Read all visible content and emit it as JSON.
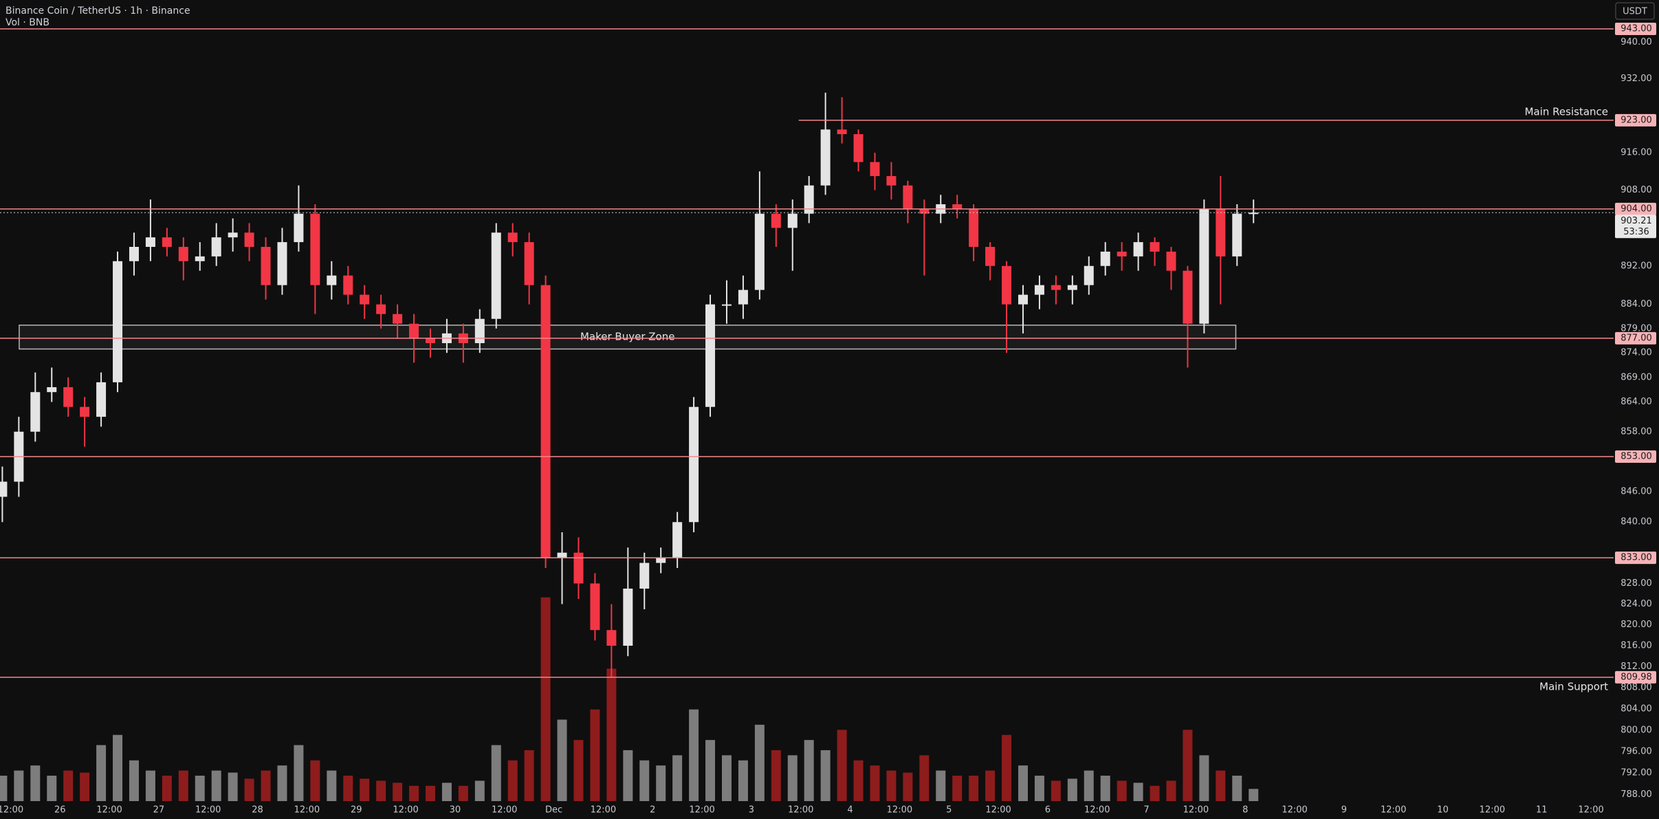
{
  "chart_data": {
    "type": "candlestick",
    "title": "Binance Coin / TetherUS · 1h · Binance",
    "subtitle": "Vol · BNB",
    "currency": "USDT",
    "log_scale": true,
    "up_color": "#e4e4e4",
    "down_color": "#f23645",
    "x": [
      -2,
      2,
      6,
      10,
      14,
      18,
      22,
      26,
      30,
      34,
      38,
      42,
      46,
      50,
      54,
      58,
      62,
      66,
      70,
      74,
      78,
      82,
      86,
      90,
      94,
      98,
      102,
      106,
      110,
      114,
      118,
      122,
      126,
      130,
      134,
      138,
      142,
      146,
      150,
      154,
      158,
      162,
      166,
      170,
      174,
      178,
      182,
      186,
      190,
      194,
      198,
      202,
      206,
      210,
      214,
      218,
      222,
      226,
      230,
      234,
      238,
      242,
      246,
      250,
      254,
      258,
      262,
      266,
      270,
      274,
      278,
      282,
      286,
      290,
      294,
      298,
      302
    ],
    "open": [
      845,
      848,
      858,
      866,
      867,
      863,
      861,
      868,
      893,
      896,
      898,
      896,
      893,
      894,
      898,
      899,
      896,
      888,
      897,
      903,
      888,
      890,
      886,
      884,
      882,
      880,
      877,
      876,
      878,
      876,
      881,
      899,
      897,
      888,
      833,
      834,
      828,
      819,
      816,
      827,
      832,
      833,
      840,
      863,
      884,
      884,
      887,
      903,
      900,
      903,
      909,
      921,
      920,
      914,
      911,
      909,
      904,
      903,
      905,
      904,
      896,
      892,
      884,
      886,
      888,
      887,
      888,
      892,
      895,
      894,
      897,
      895,
      891,
      880,
      904,
      894,
      903
    ],
    "high": [
      851,
      861,
      870,
      871,
      869,
      865,
      870,
      895,
      899,
      906,
      900,
      898,
      897,
      901,
      902,
      901,
      898,
      900,
      909,
      905,
      893,
      892,
      888,
      886,
      884,
      882,
      879,
      881,
      880,
      883,
      901,
      901,
      899,
      890,
      838,
      837,
      830,
      824,
      835,
      834,
      835,
      842,
      865,
      886,
      889,
      890,
      912,
      905,
      906,
      911,
      929,
      928,
      921,
      916,
      914,
      910,
      906,
      907,
      907,
      905,
      897,
      893,
      888,
      890,
      890,
      890,
      894,
      897,
      897,
      899,
      898,
      896,
      892,
      906,
      911,
      905,
      906
    ],
    "low": [
      840,
      845,
      856,
      864,
      861,
      855,
      859,
      866,
      890,
      893,
      894,
      889,
      891,
      892,
      895,
      893,
      885,
      886,
      895,
      882,
      885,
      884,
      881,
      879,
      877,
      872,
      873,
      874,
      872,
      874,
      879,
      894,
      884,
      831,
      824,
      825,
      817,
      810,
      814,
      823,
      830,
      831,
      838,
      861,
      880,
      881,
      885,
      896,
      891,
      901,
      907,
      918,
      912,
      908,
      906,
      901,
      890,
      901,
      902,
      893,
      889,
      874,
      878,
      883,
      884,
      884,
      886,
      890,
      891,
      891,
      892,
      887,
      871,
      878,
      884,
      892,
      901
    ],
    "close": [
      848,
      858,
      866,
      867,
      863,
      861,
      868,
      893,
      896,
      898,
      896,
      893,
      894,
      898,
      899,
      896,
      888,
      897,
      903,
      888,
      890,
      886,
      884,
      882,
      880,
      877,
      876,
      878,
      876,
      881,
      899,
      897,
      888,
      833,
      834,
      828,
      819,
      816,
      827,
      832,
      833,
      840,
      863,
      884,
      884,
      887,
      903,
      900,
      903,
      909,
      921,
      920,
      914,
      911,
      909,
      904,
      903,
      905,
      904,
      896,
      892,
      884,
      886,
      888,
      887,
      888,
      892,
      895,
      894,
      897,
      895,
      891,
      880,
      904,
      894,
      903,
      903.21
    ],
    "volume": {
      "up_color": "#7d7d7d",
      "down_color": "#8e1c1c",
      "ylim": [
        0,
        270000
      ],
      "values": [
        25000,
        30000,
        35000,
        25000,
        30000,
        28000,
        55000,
        65000,
        40000,
        30000,
        25000,
        30000,
        25000,
        30000,
        28000,
        22000,
        30000,
        35000,
        55000,
        40000,
        30000,
        25000,
        22000,
        20000,
        18000,
        15000,
        15000,
        18000,
        15000,
        20000,
        55000,
        40000,
        50000,
        200000,
        80000,
        60000,
        90000,
        130000,
        50000,
        40000,
        35000,
        45000,
        90000,
        60000,
        45000,
        40000,
        75000,
        50000,
        45000,
        60000,
        50000,
        70000,
        40000,
        35000,
        30000,
        28000,
        45000,
        30000,
        25000,
        25000,
        30000,
        65000,
        35000,
        25000,
        20000,
        22000,
        30000,
        25000,
        20000,
        18000,
        15000,
        20000,
        70000,
        45000,
        30000,
        25000,
        12000
      ]
    },
    "xlim": [
      -2.57,
      389.5
    ],
    "xticks": [
      {
        "value": 0,
        "label": "12:00"
      },
      {
        "value": 12,
        "label": "26"
      },
      {
        "value": 24,
        "label": "12:00"
      },
      {
        "value": 36,
        "label": "27"
      },
      {
        "value": 48,
        "label": "12:00"
      },
      {
        "value": 60,
        "label": "28"
      },
      {
        "value": 72,
        "label": "12:00"
      },
      {
        "value": 84,
        "label": "29"
      },
      {
        "value": 96,
        "label": "12:00"
      },
      {
        "value": 108,
        "label": "30"
      },
      {
        "value": 120,
        "label": "12:00"
      },
      {
        "value": 132,
        "label": "Dec"
      },
      {
        "value": 144,
        "label": "12:00"
      },
      {
        "value": 156,
        "label": "2"
      },
      {
        "value": 168,
        "label": "12:00"
      },
      {
        "value": 180,
        "label": "3"
      },
      {
        "value": 192,
        "label": "12:00"
      },
      {
        "value": 204,
        "label": "4"
      },
      {
        "value": 216,
        "label": "12:00"
      },
      {
        "value": 228,
        "label": "5"
      },
      {
        "value": 240,
        "label": "12:00"
      },
      {
        "value": 252,
        "label": "6"
      },
      {
        "value": 264,
        "label": "12:00"
      },
      {
        "value": 276,
        "label": "7"
      },
      {
        "value": 288,
        "label": "12:00"
      },
      {
        "value": 300,
        "label": "8"
      },
      {
        "value": 312,
        "label": "12:00"
      },
      {
        "value": 324,
        "label": "9"
      },
      {
        "value": 336,
        "label": "12:00"
      },
      {
        "value": 348,
        "label": "10"
      },
      {
        "value": 360,
        "label": "12:00"
      },
      {
        "value": 372,
        "label": "11"
      },
      {
        "value": 384,
        "label": "12:00"
      }
    ],
    "ylim": [
      786.8,
      949.4
    ],
    "yticks": [
      {
        "value": 940,
        "label": "940.00"
      },
      {
        "value": 932,
        "label": "932.00"
      },
      {
        "value": 916,
        "label": "916.00"
      },
      {
        "value": 908,
        "label": "908.00"
      },
      {
        "value": 892,
        "label": "892.00"
      },
      {
        "value": 884,
        "label": "884.00"
      },
      {
        "value": 879,
        "label": "879.00"
      },
      {
        "value": 874,
        "label": "874.00"
      },
      {
        "value": 869,
        "label": "869.00"
      },
      {
        "value": 864,
        "label": "864.00"
      },
      {
        "value": 858,
        "label": "858.00"
      },
      {
        "value": 846,
        "label": "846.00"
      },
      {
        "value": 840,
        "label": "840.00"
      },
      {
        "value": 828,
        "label": "828.00"
      },
      {
        "value": 824,
        "label": "824.00"
      },
      {
        "value": 820,
        "label": "820.00"
      },
      {
        "value": 816,
        "label": "816.00"
      },
      {
        "value": 812,
        "label": "812.00"
      },
      {
        "value": 808,
        "label": "808.00"
      },
      {
        "value": 804,
        "label": "804.00"
      },
      {
        "value": 800,
        "label": "800.00"
      },
      {
        "value": 796,
        "label": "796.00"
      },
      {
        "value": 792,
        "label": "792.00"
      },
      {
        "value": 788,
        "label": "788.00"
      }
    ],
    "level_color": "#f7868c",
    "level_label_bg": "#f6b3b7",
    "levels": [
      {
        "value": 943,
        "label": "943.00"
      },
      {
        "value": 923,
        "label": "923.00",
        "start": 191.5,
        "annotation": "Main Resistance"
      },
      {
        "value": 904,
        "label": "904.00"
      },
      {
        "value": 877,
        "label": "877.00"
      },
      {
        "value": 853,
        "label": "853.00"
      },
      {
        "value": 833,
        "label": "833.00"
      },
      {
        "value": 809.98,
        "label": "809.98",
        "annotation": "Main Support"
      }
    ],
    "zone": {
      "label": "Maker Buyer Zone",
      "top": 879.7,
      "bottom": 874.8,
      "start": 2.1,
      "end": 297.7
    },
    "last_price": {
      "value": 903.21,
      "label": "903.21",
      "countdown": "53:36"
    }
  }
}
